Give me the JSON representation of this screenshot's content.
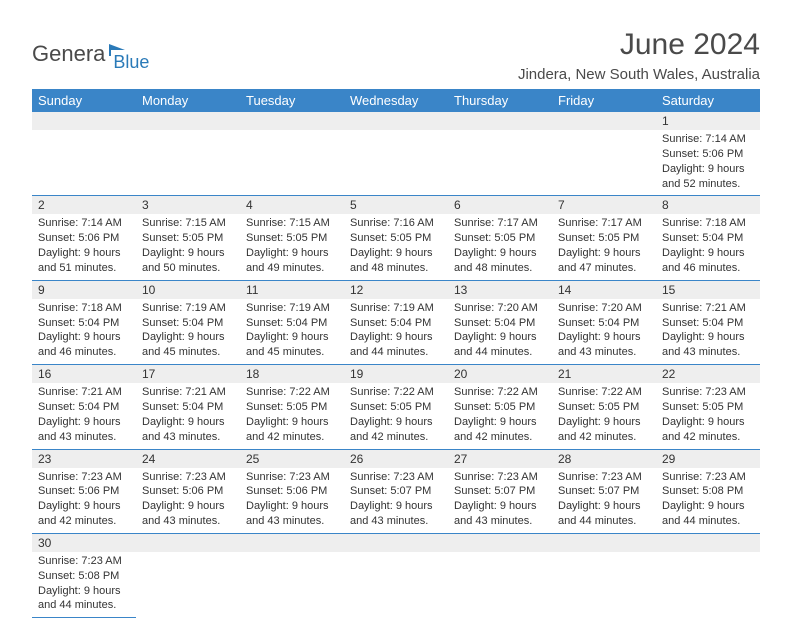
{
  "logo": {
    "main": "Genera",
    "accent": "Blue"
  },
  "title": "June 2024",
  "subtitle": "Jindera, New South Wales, Australia",
  "colors": {
    "header_bg": "#3a85c8",
    "header_text": "#ffffff",
    "daynum_bg": "#eeeeee",
    "row_border": "#3a85c8",
    "logo_main": "#4a4a4a",
    "logo_accent": "#2a7ab8",
    "title_color": "#4a4a4a",
    "body_text": "#333333"
  },
  "typography": {
    "title_fontsize": 30,
    "subtitle_fontsize": 15,
    "header_fontsize": 13,
    "daynum_fontsize": 12,
    "cell_fontsize": 11
  },
  "weekdays": [
    "Sunday",
    "Monday",
    "Tuesday",
    "Wednesday",
    "Thursday",
    "Friday",
    "Saturday"
  ],
  "weeks": [
    [
      null,
      null,
      null,
      null,
      null,
      null,
      {
        "num": "1",
        "sunrise": "Sunrise: 7:14 AM",
        "sunset": "Sunset: 5:06 PM",
        "daylight": "Daylight: 9 hours and 52 minutes."
      }
    ],
    [
      {
        "num": "2",
        "sunrise": "Sunrise: 7:14 AM",
        "sunset": "Sunset: 5:06 PM",
        "daylight": "Daylight: 9 hours and 51 minutes."
      },
      {
        "num": "3",
        "sunrise": "Sunrise: 7:15 AM",
        "sunset": "Sunset: 5:05 PM",
        "daylight": "Daylight: 9 hours and 50 minutes."
      },
      {
        "num": "4",
        "sunrise": "Sunrise: 7:15 AM",
        "sunset": "Sunset: 5:05 PM",
        "daylight": "Daylight: 9 hours and 49 minutes."
      },
      {
        "num": "5",
        "sunrise": "Sunrise: 7:16 AM",
        "sunset": "Sunset: 5:05 PM",
        "daylight": "Daylight: 9 hours and 48 minutes."
      },
      {
        "num": "6",
        "sunrise": "Sunrise: 7:17 AM",
        "sunset": "Sunset: 5:05 PM",
        "daylight": "Daylight: 9 hours and 48 minutes."
      },
      {
        "num": "7",
        "sunrise": "Sunrise: 7:17 AM",
        "sunset": "Sunset: 5:05 PM",
        "daylight": "Daylight: 9 hours and 47 minutes."
      },
      {
        "num": "8",
        "sunrise": "Sunrise: 7:18 AM",
        "sunset": "Sunset: 5:04 PM",
        "daylight": "Daylight: 9 hours and 46 minutes."
      }
    ],
    [
      {
        "num": "9",
        "sunrise": "Sunrise: 7:18 AM",
        "sunset": "Sunset: 5:04 PM",
        "daylight": "Daylight: 9 hours and 46 minutes."
      },
      {
        "num": "10",
        "sunrise": "Sunrise: 7:19 AM",
        "sunset": "Sunset: 5:04 PM",
        "daylight": "Daylight: 9 hours and 45 minutes."
      },
      {
        "num": "11",
        "sunrise": "Sunrise: 7:19 AM",
        "sunset": "Sunset: 5:04 PM",
        "daylight": "Daylight: 9 hours and 45 minutes."
      },
      {
        "num": "12",
        "sunrise": "Sunrise: 7:19 AM",
        "sunset": "Sunset: 5:04 PM",
        "daylight": "Daylight: 9 hours and 44 minutes."
      },
      {
        "num": "13",
        "sunrise": "Sunrise: 7:20 AM",
        "sunset": "Sunset: 5:04 PM",
        "daylight": "Daylight: 9 hours and 44 minutes."
      },
      {
        "num": "14",
        "sunrise": "Sunrise: 7:20 AM",
        "sunset": "Sunset: 5:04 PM",
        "daylight": "Daylight: 9 hours and 43 minutes."
      },
      {
        "num": "15",
        "sunrise": "Sunrise: 7:21 AM",
        "sunset": "Sunset: 5:04 PM",
        "daylight": "Daylight: 9 hours and 43 minutes."
      }
    ],
    [
      {
        "num": "16",
        "sunrise": "Sunrise: 7:21 AM",
        "sunset": "Sunset: 5:04 PM",
        "daylight": "Daylight: 9 hours and 43 minutes."
      },
      {
        "num": "17",
        "sunrise": "Sunrise: 7:21 AM",
        "sunset": "Sunset: 5:04 PM",
        "daylight": "Daylight: 9 hours and 43 minutes."
      },
      {
        "num": "18",
        "sunrise": "Sunrise: 7:22 AM",
        "sunset": "Sunset: 5:05 PM",
        "daylight": "Daylight: 9 hours and 42 minutes."
      },
      {
        "num": "19",
        "sunrise": "Sunrise: 7:22 AM",
        "sunset": "Sunset: 5:05 PM",
        "daylight": "Daylight: 9 hours and 42 minutes."
      },
      {
        "num": "20",
        "sunrise": "Sunrise: 7:22 AM",
        "sunset": "Sunset: 5:05 PM",
        "daylight": "Daylight: 9 hours and 42 minutes."
      },
      {
        "num": "21",
        "sunrise": "Sunrise: 7:22 AM",
        "sunset": "Sunset: 5:05 PM",
        "daylight": "Daylight: 9 hours and 42 minutes."
      },
      {
        "num": "22",
        "sunrise": "Sunrise: 7:23 AM",
        "sunset": "Sunset: 5:05 PM",
        "daylight": "Daylight: 9 hours and 42 minutes."
      }
    ],
    [
      {
        "num": "23",
        "sunrise": "Sunrise: 7:23 AM",
        "sunset": "Sunset: 5:06 PM",
        "daylight": "Daylight: 9 hours and 42 minutes."
      },
      {
        "num": "24",
        "sunrise": "Sunrise: 7:23 AM",
        "sunset": "Sunset: 5:06 PM",
        "daylight": "Daylight: 9 hours and 43 minutes."
      },
      {
        "num": "25",
        "sunrise": "Sunrise: 7:23 AM",
        "sunset": "Sunset: 5:06 PM",
        "daylight": "Daylight: 9 hours and 43 minutes."
      },
      {
        "num": "26",
        "sunrise": "Sunrise: 7:23 AM",
        "sunset": "Sunset: 5:07 PM",
        "daylight": "Daylight: 9 hours and 43 minutes."
      },
      {
        "num": "27",
        "sunrise": "Sunrise: 7:23 AM",
        "sunset": "Sunset: 5:07 PM",
        "daylight": "Daylight: 9 hours and 43 minutes."
      },
      {
        "num": "28",
        "sunrise": "Sunrise: 7:23 AM",
        "sunset": "Sunset: 5:07 PM",
        "daylight": "Daylight: 9 hours and 44 minutes."
      },
      {
        "num": "29",
        "sunrise": "Sunrise: 7:23 AM",
        "sunset": "Sunset: 5:08 PM",
        "daylight": "Daylight: 9 hours and 44 minutes."
      }
    ],
    [
      {
        "num": "30",
        "sunrise": "Sunrise: 7:23 AM",
        "sunset": "Sunset: 5:08 PM",
        "daylight": "Daylight: 9 hours and 44 minutes."
      },
      null,
      null,
      null,
      null,
      null,
      null
    ]
  ]
}
